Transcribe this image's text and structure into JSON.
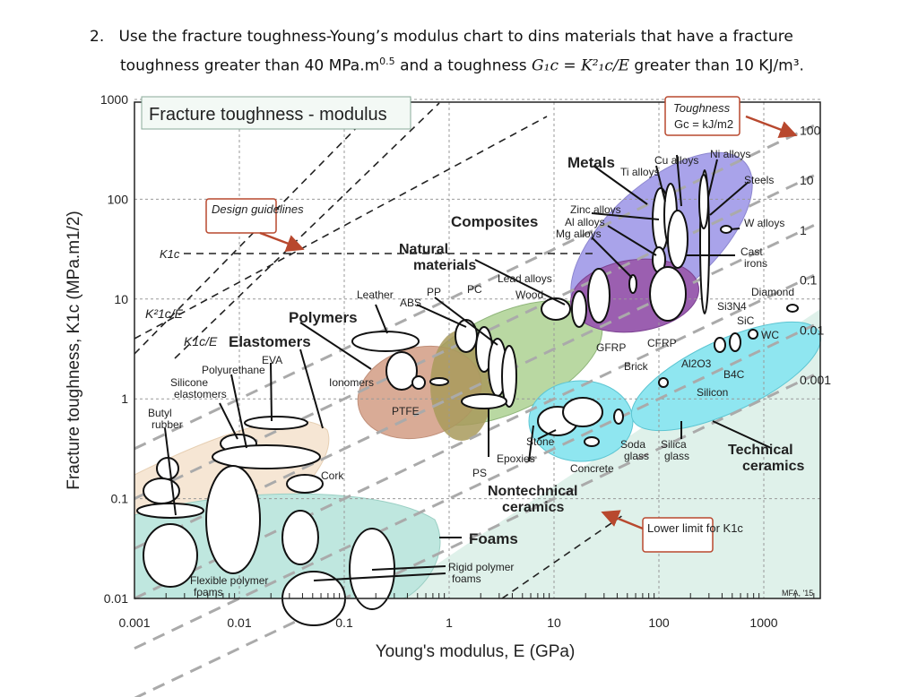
{
  "question": {
    "number": "2.",
    "line1": "Use the fracture toughness-Young’s modulus chart to dins materials that have a fracture",
    "line2a": "toughness greater than 40 MPa.m",
    "exp": "0.5",
    "line2b": " and a toughness ",
    "formula": "G₁c = K²₁c/E",
    "line2c": " greater than 10 KJ/m³."
  },
  "chart_data": {
    "type": "scatter",
    "title": "Fracture toughness - modulus",
    "xlabel": "Young's modulus, E (GPa)",
    "ylabel": "Fracture toughness, K1c (MPa.m1/2)",
    "xscale": "log",
    "yscale": "log",
    "xlim": [
      0.001,
      3000
    ],
    "ylim": [
      0.01,
      1000
    ],
    "xticks": [
      "0.001",
      "0.01",
      "0.1",
      "1",
      "10",
      "100",
      "1000"
    ],
    "yticks": [
      "0.01",
      "0.1",
      "1",
      "10",
      "100",
      "1000"
    ],
    "grid": true,
    "toughness_contours": {
      "label": "Toughness",
      "unit": "Gc = kJ/m2",
      "values": [
        100,
        10,
        1,
        0.1,
        0.01,
        0.001
      ],
      "labels": [
        "100",
        "10",
        "1",
        "0.1",
        "0.01",
        "0.001"
      ]
    },
    "families": [
      "Metals",
      "Composites",
      "Natural materials",
      "Polymers",
      "Elastomers",
      "Foams",
      "Nontechnical ceramics",
      "Technical ceramics"
    ],
    "materials": [
      "Cu alloys",
      "Ni alloys",
      "Ti alloys",
      "Steels",
      "Zinc alloys",
      "Al alloys",
      "Mg alloys",
      "W alloys",
      "Cast irons",
      "Lead alloys",
      "Wood",
      "PC",
      "PP",
      "ABS",
      "Leather",
      "Ionomers",
      "PTFE",
      "EVA",
      "Polyurethane",
      "Silicone elastomers",
      "Butyl rubber",
      "Cork",
      "GFRP",
      "CFRP",
      "Brick",
      "Stone",
      "Epoxies",
      "PS",
      "Concrete",
      "Soda glass",
      "Silica glass",
      "Silicon",
      "Al2O3",
      "B4C",
      "SiC",
      "WC",
      "Si3N4",
      "Diamond",
      "Flexible polymer foams",
      "Rigid polymer foams"
    ],
    "annotations": {
      "design": "Design guidelines",
      "k1c": "K1c",
      "k2e": "K²1c/E",
      "ke": "K1c/E",
      "lower": "Lower limit for K1c",
      "credit": "MFA, '15"
    }
  }
}
